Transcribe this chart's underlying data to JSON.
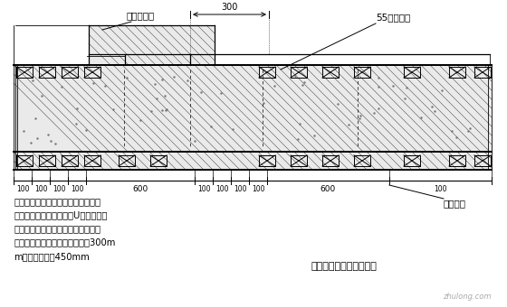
{
  "bg_color": "#ffffff",
  "lc": "#000000",
  "hatch_bg": "#f0f0f0",
  "label_dingxing": "定型钢模板",
  "label_55": "55型钢模板",
  "label_zhishui": "止水螺杆",
  "label_title": "大模板与小钢模连接构造",
  "dim_300": "300",
  "note": "注：大模板与小钢模连接处，定型作\n成与小钢模孔径对应，用U型卡满布连\n接固定，墙面支撑体系按照常规做法\n柱两侧第一排止水螺杆竖向间距300m\nm，其余间距为450mm",
  "watermark": "zhulong.com",
  "font_cn": "SimHei"
}
